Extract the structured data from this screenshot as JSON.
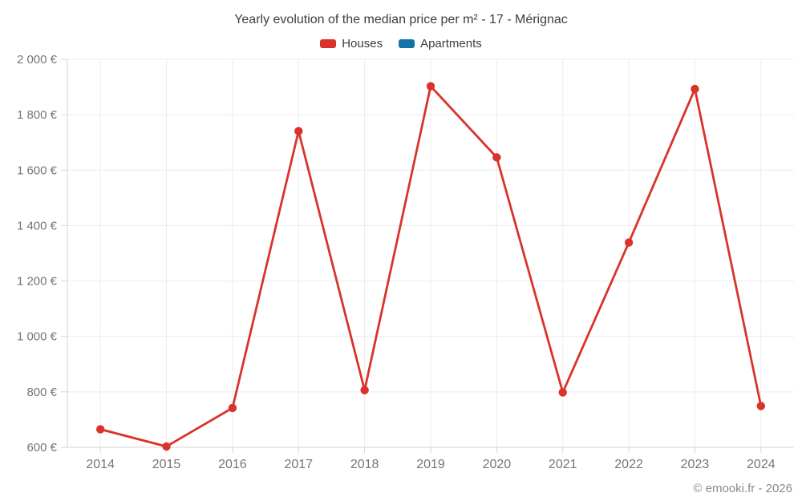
{
  "chart_data": {
    "type": "line",
    "title": "Yearly evolution of the median price per m² - 17 - Mérignac",
    "categories": [
      "2014",
      "2015",
      "2016",
      "2017",
      "2018",
      "2019",
      "2020",
      "2021",
      "2022",
      "2023",
      "2024"
    ],
    "series": [
      {
        "name": "Houses",
        "color": "#d9332b",
        "marker": "circle",
        "values": [
          665,
          603,
          742,
          1741,
          806,
          1903,
          1646,
          798,
          1339,
          1893,
          749
        ]
      },
      {
        "name": "Apartments",
        "color": "#1273a5",
        "marker": "circle",
        "values": []
      }
    ],
    "xlabel": "",
    "ylabel": "",
    "ylim": [
      600,
      2000
    ],
    "y_ticks": [
      {
        "value": 600,
        "label": "600 €"
      },
      {
        "value": 800,
        "label": "800 €"
      },
      {
        "value": 1000,
        "label": "1 000 €"
      },
      {
        "value": 1200,
        "label": "1 200 €"
      },
      {
        "value": 1400,
        "label": "1 400 €"
      },
      {
        "value": 1600,
        "label": "1 600 €"
      },
      {
        "value": 1800,
        "label": "1 800 €"
      },
      {
        "value": 2000,
        "label": "2 000 €"
      }
    ],
    "grid": true,
    "legend_position": "top",
    "colors": {
      "grid_line": "#ececec",
      "axis_line": "#d6d6d6",
      "tick_mark": "#d6d6d6",
      "tick_label": "#757575",
      "title_text": "#3d3d3d",
      "background": "#ffffff"
    }
  },
  "footer": {
    "credit": "© emooki.fr - 2026"
  }
}
